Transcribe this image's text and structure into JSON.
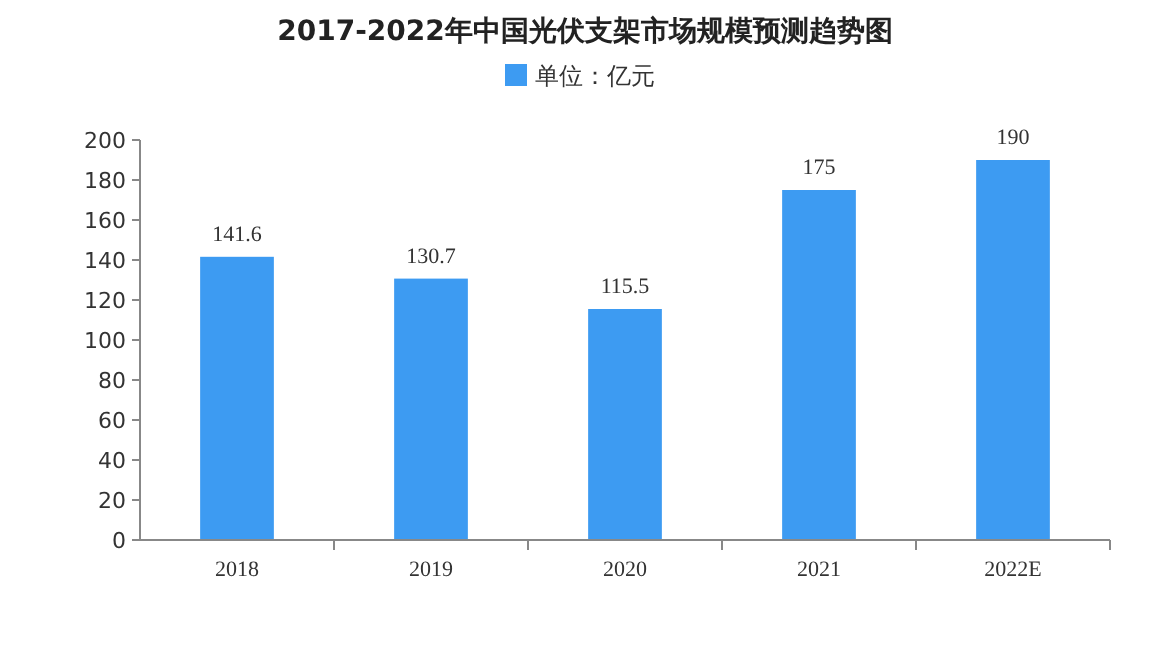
{
  "chart_data": {
    "type": "bar",
    "title": "2017-2022年中国光伏支架市场规模预测趋势图",
    "categories": [
      "2018",
      "2019",
      "2020",
      "2021",
      "2022E"
    ],
    "series": [
      {
        "name": "单位：亿元",
        "color": "#3d9bf2",
        "values": [
          141.6,
          130.7,
          115.5,
          175,
          190
        ]
      }
    ],
    "ylim": [
      0,
      200
    ],
    "yticks": [
      0,
      20,
      40,
      60,
      80,
      100,
      120,
      140,
      160,
      180,
      200
    ],
    "data_labels": true,
    "legend": "top",
    "grid": false
  }
}
